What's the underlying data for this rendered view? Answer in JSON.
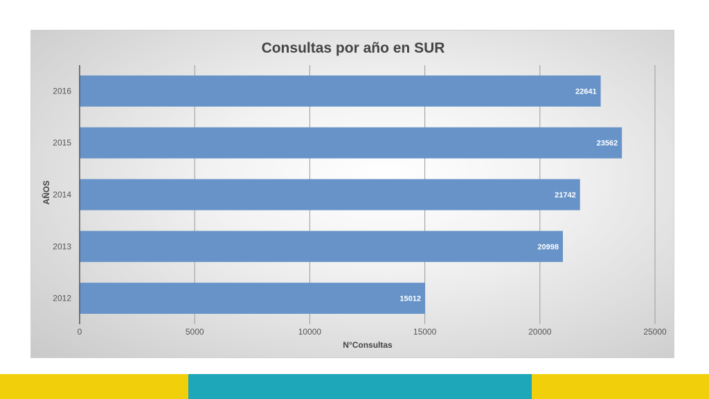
{
  "chart_data": {
    "type": "bar",
    "orientation": "horizontal",
    "title": "Consultas por año en SUR",
    "xlabel": "N°Consultas",
    "ylabel": "AÑOS",
    "categories": [
      "2016",
      "2015",
      "2014",
      "2013",
      "2012"
    ],
    "values": [
      22641,
      23562,
      21742,
      20998,
      15012
    ],
    "data_labels": [
      "22641",
      "23562",
      "21742",
      "20998",
      "15012"
    ],
    "xlim": [
      0,
      25000
    ],
    "xticks": [
      "0",
      "5000",
      "10000",
      "15000",
      "20000",
      "25000"
    ],
    "grid": true,
    "legend": "none",
    "bar_color": "#6793c8",
    "label_color": "#ffffff"
  },
  "footer": {
    "colors": [
      "#f2cf0b",
      "#1ea7b8",
      "#f2cf0b"
    ]
  }
}
